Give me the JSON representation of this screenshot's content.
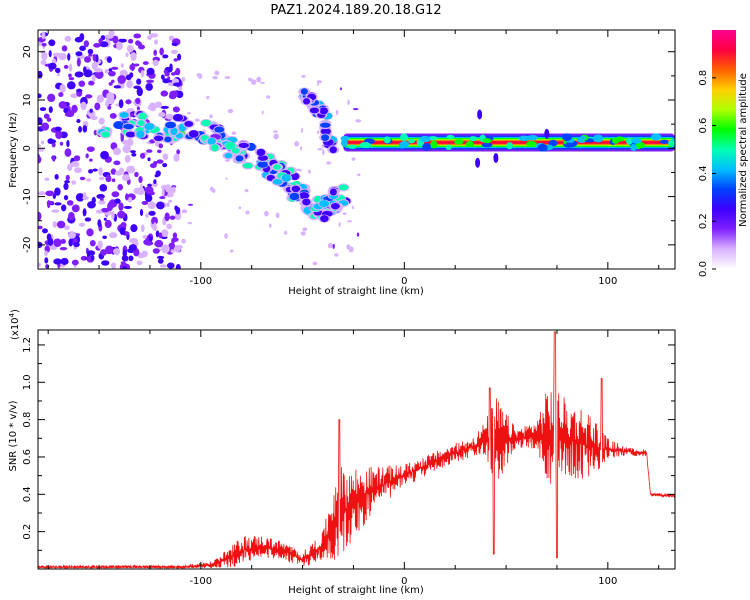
{
  "title": "PAZ1.2024.189.20.18.G12",
  "chart_data": [
    {
      "type": "heatmap",
      "xlabel": "Height of straight line (km)",
      "ylabel": "Frequency (Hz)",
      "xlim": [
        -180,
        133
      ],
      "ylim": [
        -25,
        24.5
      ],
      "xticks": [
        -100,
        0,
        100
      ],
      "yticks": [
        -20,
        -10,
        0,
        10,
        20
      ],
      "colorbar": {
        "label": "Normalized spectral amplitude",
        "range": [
          0,
          1
        ],
        "ticks": [
          "0.0",
          "0.2",
          "0.4",
          "0.6",
          "0.8"
        ],
        "colors": [
          "#ffffff",
          "#d9b3ff",
          "#7f1fff",
          "#3d00ff",
          "#0040ff",
          "#00bfff",
          "#00ffb0",
          "#00ff00",
          "#b0ff00",
          "#ffd000",
          "#ff6000",
          "#ff0040",
          "#ff0090"
        ]
      },
      "features": [
        {
          "description": "noise cloud",
          "x_range": [
            -180,
            -110
          ],
          "freq_range": [
            -25,
            24
          ]
        },
        {
          "description": "descending band",
          "points": [
            [
              -150,
              5
            ],
            [
              -100,
              4
            ],
            [
              -80,
              -1
            ],
            [
              -60,
              -5
            ],
            [
              -45,
              -13
            ],
            [
              -30,
              -10
            ]
          ]
        },
        {
          "description": "upper branch",
          "points": [
            [
              -50,
              12
            ],
            [
              -40,
              7
            ],
            [
              -35,
              0
            ]
          ]
        },
        {
          "description": "flat carrier",
          "x_range": [
            -30,
            133
          ],
          "freq": 1.2
        }
      ]
    },
    {
      "type": "line",
      "xlabel": "Height of straight line (km)",
      "ylabel": "SNR (10 * v/v)",
      "y_multiplier": "(x10",
      "y_multiplier_exp": "4",
      "y_multiplier_close": ")",
      "xlim": [
        -180,
        133
      ],
      "ylim": [
        0,
        1.28
      ],
      "xticks": [
        -100,
        0,
        100
      ],
      "yticks": [
        "0.2",
        "0.4",
        "0.6",
        "0.8",
        "1.0",
        "1.2"
      ],
      "color": "#ee1111",
      "envelope": [
        {
          "x": -180,
          "y": 0.01,
          "amp": 0.01
        },
        {
          "x": -110,
          "y": 0.01,
          "amp": 0.01
        },
        {
          "x": -95,
          "y": 0.02,
          "amp": 0.02
        },
        {
          "x": -85,
          "y": 0.06,
          "amp": 0.06
        },
        {
          "x": -80,
          "y": 0.1,
          "amp": 0.08
        },
        {
          "x": -70,
          "y": 0.12,
          "amp": 0.06
        },
        {
          "x": -60,
          "y": 0.1,
          "amp": 0.05
        },
        {
          "x": -50,
          "y": 0.05,
          "amp": 0.04
        },
        {
          "x": -40,
          "y": 0.12,
          "amp": 0.08
        },
        {
          "x": -33,
          "y": 0.3,
          "amp": 0.25
        },
        {
          "x": -25,
          "y": 0.35,
          "amp": 0.2
        },
        {
          "x": -15,
          "y": 0.43,
          "amp": 0.12
        },
        {
          "x": 0,
          "y": 0.5,
          "amp": 0.06
        },
        {
          "x": 20,
          "y": 0.6,
          "amp": 0.05
        },
        {
          "x": 35,
          "y": 0.66,
          "amp": 0.06
        },
        {
          "x": 40,
          "y": 0.7,
          "amp": 0.1
        },
        {
          "x": 45,
          "y": 0.68,
          "amp": 0.25
        },
        {
          "x": 55,
          "y": 0.7,
          "amp": 0.05
        },
        {
          "x": 65,
          "y": 0.72,
          "amp": 0.08
        },
        {
          "x": 72,
          "y": 0.72,
          "amp": 0.3
        },
        {
          "x": 80,
          "y": 0.7,
          "amp": 0.2
        },
        {
          "x": 90,
          "y": 0.66,
          "amp": 0.2
        },
        {
          "x": 100,
          "y": 0.64,
          "amp": 0.06
        },
        {
          "x": 110,
          "y": 0.63,
          "amp": 0.02
        },
        {
          "x": 119,
          "y": 0.62,
          "amp": 0.02
        },
        {
          "x": 121,
          "y": 0.4,
          "amp": 0.01
        },
        {
          "x": 133,
          "y": 0.39,
          "amp": 0.01
        }
      ],
      "spikes": [
        {
          "x": -32,
          "y": 0.8
        },
        {
          "x": 42,
          "y": 0.97
        },
        {
          "x": 44,
          "y": 0.08
        },
        {
          "x": 74,
          "y": 1.27
        },
        {
          "x": 75,
          "y": 0.06
        },
        {
          "x": 97,
          "y": 1.02
        }
      ]
    }
  ]
}
